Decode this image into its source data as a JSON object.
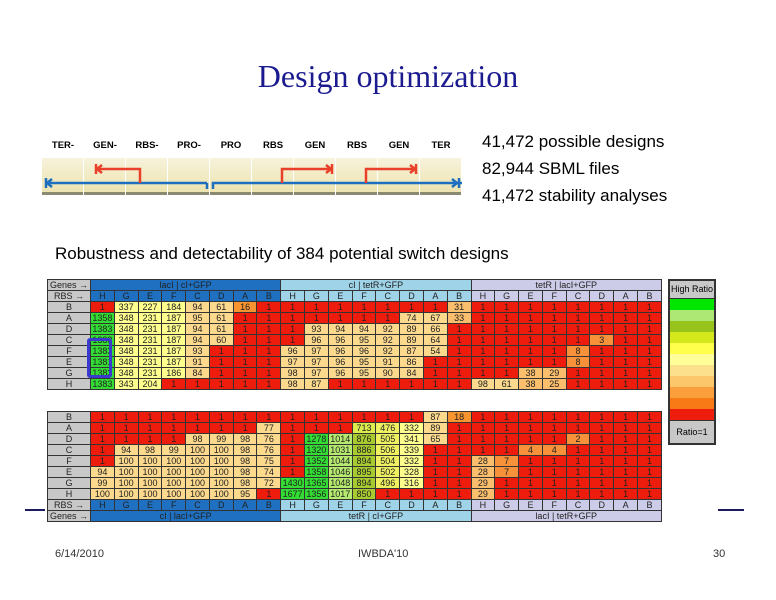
{
  "title": "Design optimization",
  "stats": [
    "41,472 possible designs",
    "82,944 SBML files",
    "41,472 stability analyses"
  ],
  "subtitle": "Robustness and detectability of 384 potential switch designs",
  "design_parts": [
    "TER-",
    "GEN-",
    "RBS-",
    "PRO-",
    "PRO",
    "RBS",
    "GEN",
    "RBS",
    "GEN",
    "TER"
  ],
  "colors": {
    "strand_forward": "#1f6fc0",
    "strand_gene": "#e8402a",
    "selection": "#3a3acf",
    "title": "#1b1b8f"
  },
  "heatmap": {
    "genes_label": "Genes →",
    "rbs_label": "RBS →",
    "rbs": [
      "H",
      "G",
      "E",
      "F",
      "C",
      "D",
      "A",
      "B"
    ],
    "top": {
      "groups": [
        "lacI | cI+GFP",
        "cI | tetR+GFP",
        "tetR | lacI+GFP"
      ],
      "row_labels": [
        "B",
        "A",
        "D",
        "C",
        "F",
        "E",
        "G",
        "H"
      ],
      "values": [
        [
          1,
          337,
          227,
          184,
          94,
          61,
          16,
          1,
          1,
          1,
          1,
          1,
          1,
          1,
          1,
          31,
          1,
          1,
          1,
          1,
          1,
          1,
          1,
          1
        ],
        [
          1358,
          348,
          231,
          187,
          95,
          61,
          1,
          1,
          1,
          1,
          1,
          1,
          1,
          74,
          67,
          33,
          1,
          1,
          1,
          1,
          1,
          1,
          1,
          1
        ],
        [
          1383,
          348,
          231,
          187,
          94,
          61,
          1,
          1,
          1,
          93,
          94,
          94,
          92,
          89,
          66,
          1,
          1,
          1,
          1,
          1,
          1,
          1,
          1,
          1
        ],
        [
          1383,
          348,
          231,
          187,
          94,
          60,
          1,
          1,
          1,
          96,
          96,
          95,
          92,
          89,
          64,
          1,
          1,
          1,
          1,
          1,
          1,
          3,
          1,
          1
        ],
        [
          1383,
          348,
          231,
          187,
          93,
          1,
          1,
          1,
          96,
          97,
          96,
          96,
          92,
          87,
          54,
          1,
          1,
          1,
          1,
          1,
          8,
          1,
          1,
          1
        ],
        [
          1381,
          348,
          231,
          187,
          91,
          1,
          1,
          1,
          97,
          97,
          96,
          95,
          91,
          86,
          1,
          1,
          1,
          1,
          1,
          1,
          8,
          1,
          1,
          1
        ],
        [
          1383,
          348,
          231,
          186,
          84,
          1,
          1,
          1,
          98,
          97,
          96,
          95,
          90,
          84,
          1,
          1,
          1,
          1,
          38,
          29,
          1,
          1,
          1,
          1
        ],
        [
          1383,
          343,
          204,
          1,
          1,
          1,
          1,
          1,
          98,
          87,
          1,
          1,
          1,
          1,
          1,
          1,
          98,
          61,
          38,
          25,
          1,
          1,
          1,
          1
        ]
      ]
    },
    "bottom": {
      "groups": [
        "cI | lacI+GFP",
        "tetR | cI+GFP",
        "lacI | tetR+GFP"
      ],
      "row_labels": [
        "B",
        "A",
        "D",
        "C",
        "F",
        "E",
        "G",
        "H"
      ],
      "values": [
        [
          1,
          1,
          1,
          1,
          1,
          1,
          1,
          1,
          1,
          1,
          1,
          1,
          1,
          1,
          87,
          18,
          1,
          1,
          1,
          1,
          1,
          1,
          1,
          1
        ],
        [
          1,
          1,
          1,
          1,
          1,
          1,
          1,
          77,
          1,
          1,
          1,
          713,
          476,
          332,
          89,
          1,
          1,
          1,
          1,
          1,
          1,
          1,
          1,
          1
        ],
        [
          1,
          1,
          1,
          1,
          98,
          99,
          98,
          76,
          1,
          1278,
          1014,
          876,
          505,
          341,
          65,
          1,
          1,
          1,
          1,
          1,
          2,
          1,
          1,
          1
        ],
        [
          1,
          94,
          98,
          99,
          100,
          100,
          98,
          76,
          1,
          1320,
          1031,
          886,
          506,
          339,
          1,
          1,
          1,
          1,
          4,
          4,
          1,
          1,
          1,
          1
        ],
        [
          1,
          100,
          100,
          100,
          100,
          100,
          98,
          75,
          1,
          1352,
          1044,
          894,
          504,
          332,
          1,
          1,
          28,
          7,
          1,
          1,
          1,
          1,
          1,
          1
        ],
        [
          94,
          100,
          100,
          100,
          100,
          100,
          98,
          74,
          1,
          1358,
          1046,
          895,
          502,
          328,
          1,
          1,
          28,
          7,
          1,
          1,
          1,
          1,
          1,
          1
        ],
        [
          99,
          100,
          100,
          100,
          100,
          100,
          98,
          72,
          1430,
          1365,
          1048,
          894,
          496,
          316,
          1,
          1,
          29,
          1,
          1,
          1,
          1,
          1,
          1,
          1
        ],
        [
          100,
          100,
          100,
          100,
          100,
          100,
          95,
          1,
          1677,
          1356,
          1017,
          850,
          1,
          1,
          1,
          1,
          29,
          1,
          1,
          1,
          1,
          1,
          1,
          1
        ]
      ]
    }
  },
  "legend": {
    "high": "High Ratio",
    "low": "Ratio=1",
    "colors": [
      "#00e600",
      "#aee874",
      "#98c41c",
      "#d4e81c",
      "#ffff4c",
      "#ffff9a",
      "#fde08c",
      "#fcc66a",
      "#fa9f3c",
      "#f77a16",
      "#ee1c0c"
    ]
  },
  "footer": {
    "date": "6/14/2010",
    "event": "IWBDA'10",
    "page": "30"
  }
}
